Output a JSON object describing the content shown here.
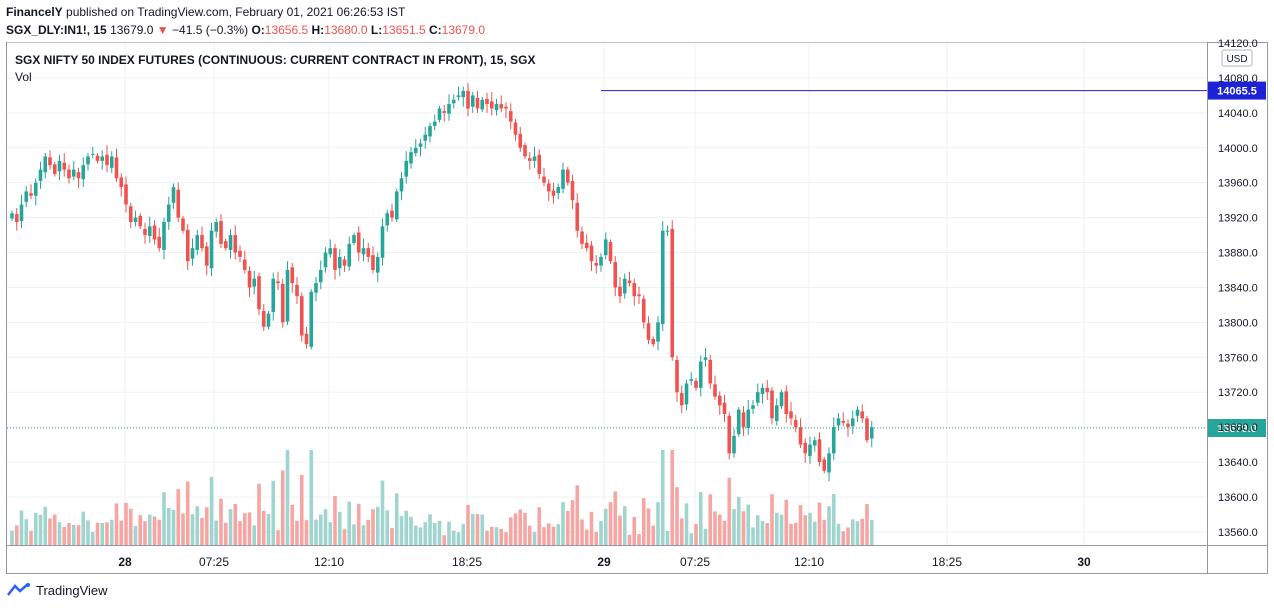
{
  "header": {
    "publisher": "FinancelY",
    "published_text": "published on TradingView.com, February 01, 2021 06:26:53 IST",
    "symbol": "SGX_DLY:IN1!, 15",
    "last": "13679.0",
    "change": "−41.5 (−0.3%)",
    "o_label": "O:",
    "o": "13656.5",
    "h_label": "H:",
    "h": "13680.0",
    "l_label": "L:",
    "l": "13651.5",
    "c_label": "C:",
    "c": "13679.0"
  },
  "chart_data": {
    "type": "candlestick",
    "title": "SGX NIFTY 50 INDEX FUTURES (CONTINUOUS: CURRENT CONTRACT IN FRONT), 15, SGX",
    "volume_label": "Vol",
    "currency": "USD",
    "y_ticks": [
      "14120.0",
      "14080.0",
      "14040.0",
      "14000.0",
      "13960.0",
      "13920.0",
      "13880.0",
      "13840.0",
      "13800.0",
      "13760.0",
      "13720.0",
      "13680.0",
      "13640.0",
      "13600.0",
      "13560.0"
    ],
    "x_ticks": [
      "28",
      "07:25",
      "12:10",
      "18:25",
      "29",
      "07:25",
      "12:10",
      "18:25",
      "30"
    ],
    "ylim": [
      13545,
      14120
    ],
    "horizontal_line": {
      "value": 14065.5,
      "label": "14065.5",
      "color": "#1e22d6"
    },
    "last_price_line": {
      "value": 13679.0,
      "label": "13679.0",
      "color": "#26a69a"
    },
    "colors": {
      "up": "#26a69a",
      "down": "#ef5350",
      "up_vol": "#9fd4cf",
      "down_vol": "#f5a6a3"
    },
    "closes": [
      13925,
      13915,
      13935,
      13950,
      13945,
      13960,
      13975,
      13990,
      13980,
      13970,
      13985,
      13975,
      13965,
      13975,
      13965,
      13980,
      13990,
      13993,
      13985,
      13990,
      13980,
      13990,
      13965,
      13955,
      13935,
      13915,
      13920,
      13910,
      13900,
      13910,
      13895,
      13885,
      13915,
      13935,
      13955,
      13920,
      13905,
      13870,
      13885,
      13900,
      13885,
      13865,
      13905,
      13915,
      13890,
      13885,
      13900,
      13880,
      13875,
      13860,
      13840,
      13850,
      13815,
      13795,
      13810,
      13850,
      13845,
      13800,
      13860,
      13845,
      13830,
      13785,
      13775,
      13835,
      13845,
      13860,
      13880,
      13885,
      13860,
      13875,
      13865,
      13890,
      13900,
      13880,
      13885,
      13875,
      13860,
      13875,
      13910,
      13925,
      13920,
      13950,
      13965,
      13985,
      13995,
      14000,
      14005,
      14015,
      14025,
      14030,
      14045,
      14040,
      14050,
      14055,
      14060,
      14065,
      14045,
      14060,
      14045,
      14055,
      14050,
      14045,
      14050,
      14045,
      14045,
      14030,
      14015,
      14000,
      13990,
      13985,
      13990,
      13970,
      13960,
      13950,
      13945,
      13955,
      13975,
      13960,
      13940,
      13905,
      13890,
      13885,
      13870,
      13865,
      13875,
      13895,
      13870,
      13840,
      13830,
      13850,
      13845,
      13830,
      13830,
      13800,
      13780,
      13775,
      13800,
      13905,
      13905,
      13760,
      13720,
      13705,
      13730,
      13735,
      13725,
      13755,
      13760,
      13730,
      13715,
      13705,
      13695,
      13650,
      13670,
      13700,
      13680,
      13700,
      13705,
      13720,
      13725,
      13720,
      13690,
      13705,
      13720,
      13695,
      13690,
      13680,
      13660,
      13650,
      13660,
      13665,
      13640,
      13630,
      13650,
      13680,
      13690,
      13685,
      13680,
      13690,
      13700,
      13690,
      13665,
      13680
    ]
  }
}
